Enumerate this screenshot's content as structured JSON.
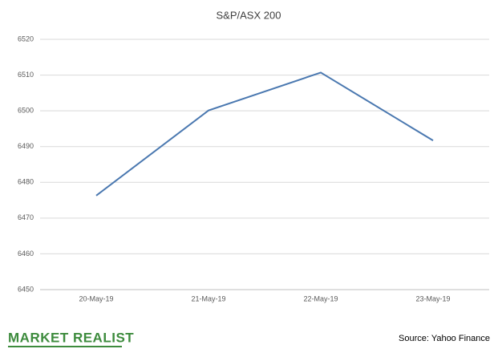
{
  "chart_data": {
    "type": "line",
    "title": "S&P/ASX 200",
    "categories": [
      "20-May-19",
      "21-May-19",
      "22-May-19",
      "23-May-19"
    ],
    "series": [
      {
        "name": "S&P/ASX 200",
        "color": "#4a78b0",
        "values": [
          6476.3,
          6500.1,
          6510.7,
          6491.7
        ]
      }
    ],
    "ylim": [
      6450,
      6520
    ],
    "yticks": [
      6450,
      6460,
      6470,
      6480,
      6490,
      6500,
      6510,
      6520
    ],
    "grid": true,
    "brand": "MARKET REALIST",
    "source": "Source: Yahoo Finance"
  }
}
